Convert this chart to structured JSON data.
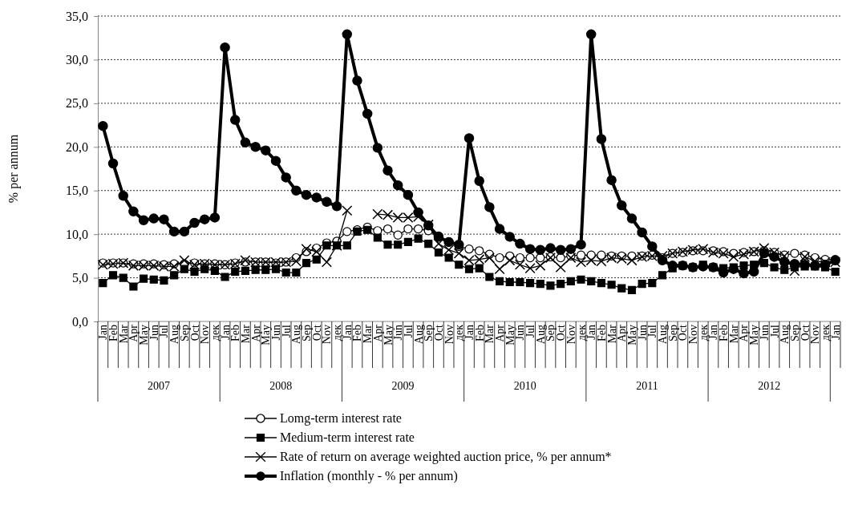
{
  "chart_data": {
    "type": "line",
    "ylabel": "% per annum",
    "categories": [
      "Jan",
      "Feb",
      "Mar",
      "Apr",
      "May",
      "Jun",
      "Jul",
      "Aug",
      "Sep",
      "Oct",
      "Nov",
      "дек",
      "Jan",
      "Feb",
      "Mar",
      "Apr",
      "May",
      "Jun",
      "Jul",
      "Aug",
      "Sep",
      "Oct",
      "Nov",
      "дек",
      "Jan",
      "Feb",
      "Mar",
      "Apr",
      "May",
      "Jun",
      "Jul",
      "Aug",
      "Sep",
      "Oct",
      "Nov",
      "дек",
      "Jan",
      "Feb",
      "Mar",
      "Apr",
      "May",
      "Jun",
      "Jul",
      "Aug",
      "Sep",
      "Oct",
      "Nov",
      "дек",
      "Jan",
      "Feb",
      "Mar",
      "Apr",
      "May",
      "Jun",
      "Jul",
      "Aug",
      "Sep",
      "Oct",
      "Nov",
      "дек",
      "Jan",
      "Feb",
      "Mar",
      "Apr",
      "May",
      "Jun",
      "Jul",
      "Aug",
      "Sep",
      "Oct",
      "Nov",
      "дек",
      "Jan"
    ],
    "annotations": [
      "2007",
      "2008",
      "2009",
      "2010",
      "2011",
      "2012"
    ],
    "ylim": [
      0,
      35
    ],
    "yticks": [
      {
        "value": 0,
        "label": "0,0"
      },
      {
        "value": 5,
        "label": "5,0"
      },
      {
        "value": 10,
        "label": "10,0"
      },
      {
        "value": 15,
        "label": "15,0"
      },
      {
        "value": 20,
        "label": "20,0"
      },
      {
        "value": 25,
        "label": "25,0"
      },
      {
        "value": 30,
        "label": "30,0"
      },
      {
        "value": 35,
        "label": "35,0"
      }
    ],
    "grid": "y",
    "legend": "bottom",
    "line_style": "solid",
    "series": [
      {
        "name": "Lomg-term interest rate",
        "color": "#000000",
        "marker": "circle",
        "values": [
          6.7,
          6.7,
          6.7,
          6.6,
          6.6,
          6.6,
          6.5,
          6.6,
          6.6,
          6.7,
          6.6,
          6.6,
          6.5,
          6.7,
          6.8,
          6.8,
          6.8,
          6.7,
          6.8,
          7.3,
          8.0,
          8.4,
          9.0,
          9.2,
          10.3,
          10.5,
          10.8,
          10.4,
          10.6,
          9.9,
          10.6,
          10.6,
          10.4,
          9.8,
          9.1,
          8.6,
          8.3,
          8.1,
          7.7,
          7.3,
          7.5,
          7.3,
          7.3,
          7.3,
          7.4,
          7.3,
          7.5,
          7.6,
          7.6,
          7.6,
          7.5,
          7.5,
          7.5,
          7.5,
          7.6,
          7.3,
          7.8,
          7.9,
          8.1,
          8.1,
          8.1,
          8.0,
          7.8,
          7.9,
          8.0,
          8.1,
          7.9,
          7.6,
          7.8,
          7.6,
          7.3,
          7.1,
          7.1
        ]
      },
      {
        "name": "Medium-term interest rate",
        "color": "#000000",
        "marker": "square",
        "values": [
          4.4,
          5.3,
          5.0,
          4.0,
          4.9,
          4.8,
          4.7,
          5.3,
          6.0,
          5.7,
          6.0,
          5.8,
          5.1,
          5.7,
          5.8,
          5.9,
          5.9,
          6.0,
          5.6,
          5.6,
          6.7,
          7.1,
          8.7,
          8.7,
          8.7,
          10.3,
          10.5,
          9.6,
          8.8,
          8.8,
          9.1,
          9.5,
          8.9,
          7.9,
          7.3,
          6.5,
          6.0,
          6.1,
          5.1,
          4.6,
          4.5,
          4.5,
          4.4,
          4.3,
          4.1,
          4.3,
          4.6,
          4.8,
          4.6,
          4.4,
          4.2,
          3.8,
          3.6,
          4.3,
          4.4,
          5.3,
          6.1,
          6.4,
          6.2,
          6.5,
          6.2,
          6.1,
          6.2,
          6.4,
          6.5,
          6.7,
          6.2,
          5.9,
          6.2,
          6.3,
          6.3,
          6.2,
          5.7
        ]
      },
      {
        "name": "Rate of return on average weighted auction price, % per annum*",
        "color": "#000000",
        "marker": "cross",
        "values": [
          6.5,
          6.6,
          6.7,
          6.4,
          6.4,
          6.4,
          6.3,
          6.3,
          7.0,
          6.5,
          6.6,
          6.5,
          6.5,
          6.6,
          7.0,
          6.8,
          6.8,
          6.8,
          6.8,
          6.9,
          8.3,
          8.0,
          6.8,
          8.7,
          12.7,
          null,
          null,
          12.3,
          12.2,
          11.9,
          11.9,
          12.0,
          11.1,
          8.9,
          8.2,
          7.8,
          7.0,
          7.1,
          7.3,
          6.0,
          7.0,
          6.5,
          6.1,
          6.4,
          7.3,
          6.2,
          7.3,
          6.8,
          7.0,
          6.9,
          7.3,
          7.2,
          7.0,
          7.4,
          7.5,
          7.5,
          7.8,
          8.0,
          8.2,
          8.3,
          7.9,
          7.8,
          7.4,
          7.7,
          8.0,
          8.4,
          7.9,
          7.5,
          5.8,
          7.4,
          6.9,
          6.8,
          6.8
        ]
      },
      {
        "name": "Inflation (monthly - % per annum)",
        "color": "#000000",
        "marker": "circle",
        "values": [
          22.4,
          18.1,
          14.4,
          12.6,
          11.6,
          11.8,
          11.7,
          10.3,
          10.3,
          11.3,
          11.7,
          11.9,
          31.4,
          23.1,
          20.5,
          20.0,
          19.6,
          18.4,
          16.5,
          15.0,
          14.5,
          14.2,
          13.7,
          13.2,
          32.9,
          27.6,
          23.8,
          19.9,
          17.3,
          15.6,
          14.5,
          12.5,
          11.0,
          9.7,
          9.1,
          8.8,
          21.0,
          16.1,
          13.1,
          10.6,
          9.7,
          8.9,
          8.3,
          8.2,
          8.4,
          8.2,
          8.3,
          8.8,
          32.9,
          20.9,
          16.2,
          13.3,
          11.8,
          10.2,
          8.6,
          7.0,
          6.4,
          6.4,
          6.2,
          6.3,
          6.2,
          5.6,
          6.0,
          5.5,
          5.7,
          7.8,
          7.4,
          6.8,
          6.6,
          6.5,
          6.4,
          6.5,
          7.0
        ]
      }
    ]
  }
}
